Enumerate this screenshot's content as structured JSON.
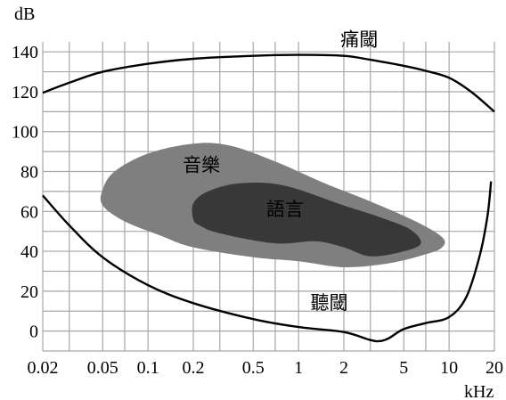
{
  "chart_data": {
    "type": "area",
    "x_scale": "log",
    "x_unit_label": "kHz",
    "y_unit_label": "dB",
    "xlim": [
      0.02,
      20
    ],
    "ylim": [
      -10,
      145
    ],
    "grid": true,
    "x_ticks": [
      {
        "value": 0.02,
        "label": "0.02"
      },
      {
        "value": 0.05,
        "label": "0.05"
      },
      {
        "value": 0.1,
        "label": "0.1"
      },
      {
        "value": 0.2,
        "label": "0.2"
      },
      {
        "value": 0.5,
        "label": "0.5"
      },
      {
        "value": 1,
        "label": "1"
      },
      {
        "value": 2,
        "label": "2"
      },
      {
        "value": 5,
        "label": "5"
      },
      {
        "value": 10,
        "label": "10"
      },
      {
        "value": 20,
        "label": "20"
      }
    ],
    "x_grid_lines": [
      0.02,
      0.03,
      0.05,
      0.07,
      0.1,
      0.2,
      0.3,
      0.5,
      0.7,
      1,
      2,
      3,
      5,
      7,
      10,
      20
    ],
    "y_ticks": [
      {
        "value": 0,
        "label": "0"
      },
      {
        "value": 20,
        "label": "20"
      },
      {
        "value": 40,
        "label": "40"
      },
      {
        "value": 60,
        "label": "60"
      },
      {
        "value": 80,
        "label": "80"
      },
      {
        "value": 100,
        "label": "100"
      },
      {
        "value": 120,
        "label": "120"
      },
      {
        "value": 140,
        "label": "140"
      }
    ],
    "y_grid_lines": [
      -10,
      0,
      10,
      20,
      30,
      40,
      50,
      60,
      70,
      80,
      90,
      100,
      110,
      120,
      130,
      140
    ],
    "pain_threshold": {
      "label": "痛閾",
      "color": "#000000",
      "points": [
        [
          0.02,
          119.5
        ],
        [
          0.03,
          124.5
        ],
        [
          0.05,
          130
        ],
        [
          0.1,
          134
        ],
        [
          0.2,
          136.5
        ],
        [
          0.5,
          138
        ],
        [
          1,
          138.5
        ],
        [
          2,
          138
        ],
        [
          3,
          136
        ],
        [
          5,
          133
        ],
        [
          7,
          130.5
        ],
        [
          10,
          127
        ],
        [
          14,
          120
        ],
        [
          20,
          110
        ]
      ]
    },
    "hearing_threshold": {
      "label": "聽閾",
      "color": "#000000",
      "points": [
        [
          0.02,
          68
        ],
        [
          0.03,
          53
        ],
        [
          0.05,
          37
        ],
        [
          0.1,
          23
        ],
        [
          0.2,
          14
        ],
        [
          0.5,
          6
        ],
        [
          1,
          2
        ],
        [
          2,
          -0.5
        ],
        [
          3,
          -4.5
        ],
        [
          3.5,
          -5
        ],
        [
          4,
          -3.5
        ],
        [
          5,
          1
        ],
        [
          7,
          4
        ],
        [
          10,
          7
        ],
        [
          13,
          17
        ],
        [
          16,
          38
        ],
        [
          18,
          58
        ],
        [
          19,
          75
        ]
      ]
    },
    "music_region": {
      "label": "音樂",
      "color": "#7f7f7f",
      "outline": [
        [
          0.05,
          71
        ],
        [
          0.06,
          80
        ],
        [
          0.1,
          89
        ],
        [
          0.2,
          94
        ],
        [
          0.35,
          93
        ],
        [
          0.7,
          85
        ],
        [
          1.5,
          74
        ],
        [
          3,
          65
        ],
        [
          6,
          55
        ],
        [
          9,
          47
        ],
        [
          9,
          42
        ],
        [
          7,
          38.5
        ],
        [
          4,
          34
        ],
        [
          2,
          32
        ],
        [
          1,
          35
        ],
        [
          0.5,
          37
        ],
        [
          0.2,
          42
        ],
        [
          0.12,
          48
        ],
        [
          0.07,
          55
        ],
        [
          0.05,
          63
        ]
      ]
    },
    "speech_region": {
      "label": "語言",
      "color": "#383838",
      "outline": [
        [
          0.2,
          56
        ],
        [
          0.2,
          64
        ],
        [
          0.25,
          70
        ],
        [
          0.4,
          74
        ],
        [
          0.8,
          73
        ],
        [
          2,
          63
        ],
        [
          3.5,
          57
        ],
        [
          5.5,
          51
        ],
        [
          6.5,
          44
        ],
        [
          5,
          40
        ],
        [
          3,
          37.5
        ],
        [
          2,
          42
        ],
        [
          1.3,
          45
        ],
        [
          0.7,
          44
        ],
        [
          0.3,
          49
        ],
        [
          0.22,
          53
        ]
      ]
    },
    "label_positions": {
      "pain_threshold": [
        1.9,
        143
      ],
      "hearing_threshold": [
        1.2,
        11
      ],
      "music_region": [
        0.17,
        80
      ],
      "speech_region": [
        0.61,
        58
      ]
    }
  }
}
